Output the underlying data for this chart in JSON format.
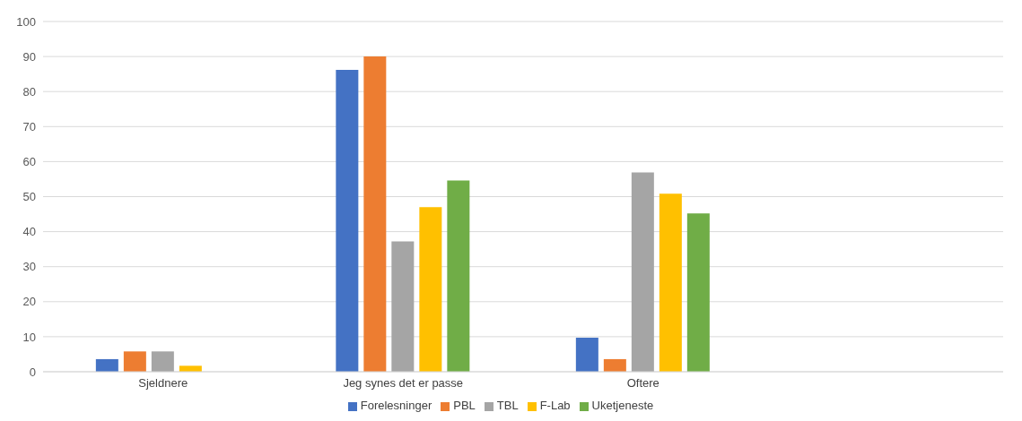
{
  "chart_data": {
    "type": "bar",
    "categories": [
      "Sjeldnere",
      "Jeg synes det er passe",
      "Oftere",
      null
    ],
    "series": [
      {
        "name": "Forelesninger",
        "color": "#4472c4",
        "values": [
          3.6,
          86.2,
          9.7,
          null
        ]
      },
      {
        "name": "PBL",
        "color": "#ed7d31",
        "values": [
          5.8,
          90,
          3.6,
          null
        ]
      },
      {
        "name": "TBL",
        "color": "#a5a5a5",
        "values": [
          5.8,
          37.2,
          56.9,
          null
        ]
      },
      {
        "name": "F-Lab",
        "color": "#ffc000",
        "values": [
          1.7,
          47,
          50.8,
          null
        ]
      },
      {
        "name": "Uketjeneste",
        "color": "#70ad47",
        "values": [
          null,
          54.6,
          45.2,
          null
        ]
      }
    ],
    "ylim": [
      0,
      100
    ],
    "yticks": [
      0,
      10,
      20,
      30,
      40,
      50,
      60,
      70,
      80,
      90,
      100
    ],
    "grid": "y",
    "legend": "bottom"
  }
}
